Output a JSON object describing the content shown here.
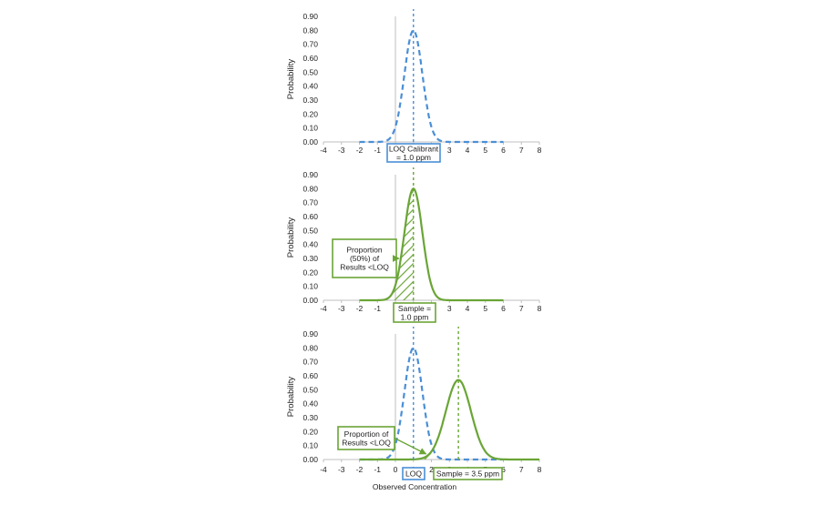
{
  "colors": {
    "blue": "#4a8fd6",
    "green": "#6aa536",
    "axis": "#bfbfbf",
    "text": "#222222"
  },
  "chart_data": [
    {
      "type": "line",
      "ylabel": "Probability",
      "xlabel": "",
      "xlim": [
        -4,
        8
      ],
      "ylim": [
        0,
        0.9
      ],
      "x_ticks": [
        "-4",
        "-3",
        "-2",
        "-1",
        "0",
        "1",
        "2",
        "3",
        "4",
        "5",
        "6",
        "7",
        "8"
      ],
      "y_ticks": [
        "0.00",
        "0.10",
        "0.20",
        "0.30",
        "0.40",
        "0.50",
        "0.60",
        "0.70",
        "0.80",
        "0.90"
      ],
      "series": [
        {
          "color": "blue",
          "style": "dashed",
          "mean": 1.0,
          "sd": 0.5,
          "peak": 0.8,
          "x_range": [
            -2,
            6
          ]
        }
      ],
      "vlines": [
        {
          "x": 1.0,
          "color": "blue",
          "style": "dashed"
        }
      ],
      "annotations": [
        {
          "lines": [
            "LOQ Calibrant",
            "= 1.0 ppm"
          ],
          "color": "blue",
          "anchor_x": 1.0
        }
      ]
    },
    {
      "type": "line",
      "ylabel": "Probability",
      "xlabel": "",
      "xlim": [
        -4,
        8
      ],
      "ylim": [
        0,
        0.9
      ],
      "x_ticks": [
        "-4",
        "-3",
        "-2",
        "-1",
        "0",
        "1",
        "2",
        "3",
        "4",
        "5",
        "6",
        "7",
        "8"
      ],
      "y_ticks": [
        "0.00",
        "0.10",
        "0.20",
        "0.30",
        "0.40",
        "0.50",
        "0.60",
        "0.70",
        "0.80",
        "0.90"
      ],
      "series": [
        {
          "color": "green",
          "style": "solid",
          "mean": 1.0,
          "sd": 0.5,
          "peak": 0.8,
          "x_range": [
            -2,
            6
          ]
        }
      ],
      "vlines": [
        {
          "x": 1.0,
          "color": "green",
          "style": "dashed"
        }
      ],
      "shaded": {
        "from": -2,
        "to": 1.0,
        "color": "green",
        "hatch": true
      },
      "annotations": [
        {
          "lines": [
            "Proportion",
            "(50%) of",
            "Results <LOQ"
          ],
          "color": "green",
          "arrow_to": [
            0.2,
            0.3
          ]
        },
        {
          "lines": [
            "Sample =",
            "1.0 ppm"
          ],
          "color": "green",
          "anchor_x": 1.0
        }
      ]
    },
    {
      "type": "line",
      "ylabel": "Probability",
      "xlabel": "Observed Concentration",
      "xlim": [
        -4,
        8
      ],
      "ylim": [
        0,
        0.9
      ],
      "x_ticks": [
        "-4",
        "-3",
        "-2",
        "-1",
        "0",
        "1",
        "2",
        "3",
        "4",
        "5",
        "6",
        "7",
        "8"
      ],
      "y_ticks": [
        "0.00",
        "0.10",
        "0.20",
        "0.30",
        "0.40",
        "0.50",
        "0.60",
        "0.70",
        "0.80",
        "0.90"
      ],
      "series": [
        {
          "color": "blue",
          "style": "dashed",
          "mean": 1.0,
          "sd": 0.5,
          "peak": 0.8,
          "x_range": [
            -2,
            6
          ]
        },
        {
          "color": "green",
          "style": "solid",
          "mean": 3.5,
          "sd": 0.7,
          "peak": 0.57,
          "x_range": [
            -2,
            8
          ]
        }
      ],
      "vlines": [
        {
          "x": 1.0,
          "color": "blue",
          "style": "dashed"
        },
        {
          "x": 3.5,
          "color": "green",
          "style": "dashed"
        }
      ],
      "shaded": {
        "from": 1.5,
        "to": 2.0,
        "color": "green",
        "hatch": true
      },
      "annotations": [
        {
          "lines": [
            "Proportion of",
            "Results <LOQ"
          ],
          "color": "green",
          "arrow_to": [
            1.7,
            0.04
          ]
        },
        {
          "lines": [
            "LOQ"
          ],
          "color": "blue",
          "anchor_x": 1.0
        },
        {
          "lines": [
            "Sample = 3.5 ppm"
          ],
          "color": "green",
          "anchor_x": 3.5
        }
      ]
    }
  ]
}
